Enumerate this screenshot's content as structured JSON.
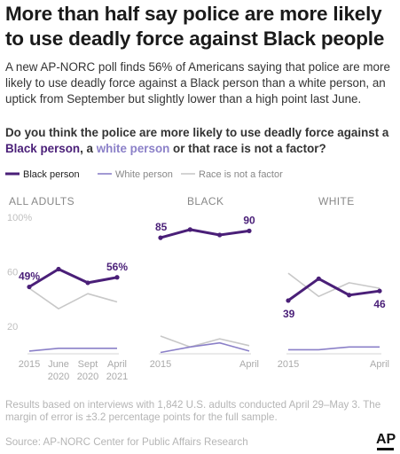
{
  "headline": "More than half say police are more likely to use deadly force against Black people",
  "dek": "A new AP-NORC poll finds 56% of Americans saying that police are more likely to use deadly force against a Black person than a white person, an uptick from September but slightly lower than a high point last June.",
  "question": {
    "part1": "Do you think the police are more likely to use deadly force against a ",
    "black": "Black person",
    "part2": ", a ",
    "white": "white person",
    "part3": " or that race is not a factor?"
  },
  "footnote": "Results based on interviews with 1,842 U.S. adults conducted April 29–May 3. The margin of error is ±3.2 percentage points for the full sample.",
  "source": "Source: AP-NORC Center for Public Affairs Research",
  "logo": "AP",
  "colors": {
    "black": "#4a1f78",
    "white": "#8b80c8",
    "nofactor": "#c8c8c8"
  },
  "chart_data": [
    {
      "type": "line",
      "title": "ALL ADULTS",
      "x": [
        "2015",
        "June 2020",
        "Sept 2020",
        "April 2021"
      ],
      "x_ticks": [
        [
          "2015",
          ""
        ],
        [
          "June",
          "2020"
        ],
        [
          "Sept",
          "2020"
        ],
        [
          "April",
          "2021"
        ]
      ],
      "y_ticks": [
        "100%",
        "60",
        "20"
      ],
      "ylim": [
        0,
        100
      ],
      "series": [
        {
          "name": "Black person",
          "values": [
            49,
            62,
            52,
            56
          ],
          "labels": [
            "49%",
            "",
            "",
            "56%"
          ]
        },
        {
          "name": "White person",
          "values": [
            2,
            4,
            4,
            4
          ]
        },
        {
          "name": "Race is not a factor",
          "values": [
            48,
            33,
            44,
            38
          ]
        }
      ]
    },
    {
      "type": "line",
      "title": "BLACK",
      "x": [
        "2015",
        "June 2020",
        "Sept 2020",
        "April 2021"
      ],
      "x_ticks": [
        [
          "2015",
          ""
        ],
        [
          "",
          ""
        ],
        [
          "",
          ""
        ],
        [
          "April",
          ""
        ]
      ],
      "ylim": [
        0,
        100
      ],
      "series": [
        {
          "name": "Black person",
          "values": [
            85,
            91,
            87,
            90
          ],
          "labels": [
            "85",
            "",
            "",
            "90"
          ]
        },
        {
          "name": "White person",
          "values": [
            1,
            5,
            8,
            2
          ]
        },
        {
          "name": "Race is not a factor",
          "values": [
            13,
            5,
            11,
            6
          ]
        }
      ]
    },
    {
      "type": "line",
      "title": "WHITE",
      "x": [
        "2015",
        "June 2020",
        "Sept 2020",
        "April 2021"
      ],
      "x_ticks": [
        [
          "2015",
          ""
        ],
        [
          "",
          ""
        ],
        [
          "",
          ""
        ],
        [
          "April",
          ""
        ]
      ],
      "ylim": [
        0,
        100
      ],
      "series": [
        {
          "name": "Black person",
          "values": [
            39,
            55,
            43,
            46
          ],
          "labels": [
            "39",
            "",
            "",
            "46"
          ]
        },
        {
          "name": "White person",
          "values": [
            3,
            3,
            5,
            5
          ]
        },
        {
          "name": "Race is not a factor",
          "values": [
            59,
            42,
            52,
            48
          ]
        }
      ]
    }
  ]
}
